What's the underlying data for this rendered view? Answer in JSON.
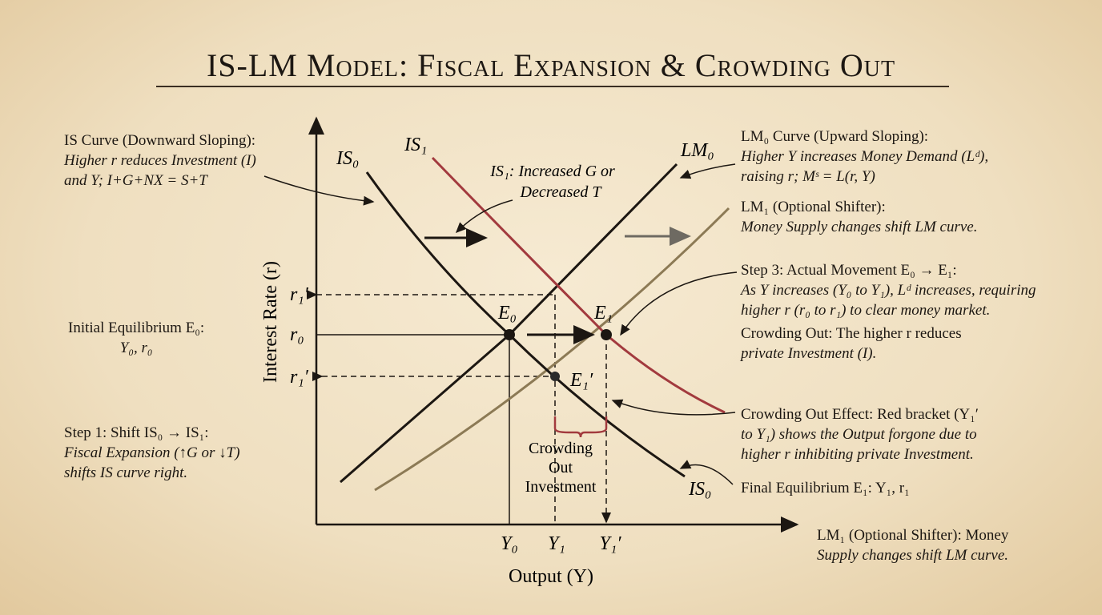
{
  "title": "IS-LM Model: Fiscal Expansion & Crowding Out",
  "axes": {
    "y_label": "Interest Rate (r)",
    "x_label": "Output (Y)"
  },
  "curve_labels": {
    "is0_top": "IS₀",
    "is1": "IS₁",
    "lm0": "LM₀",
    "is0_bottom": "IS₀"
  },
  "axis_marks": {
    "r1_prime_top": "r₁′",
    "r0": "r₀",
    "r1_prime_bottom": "r₁′",
    "y0": "Y₀",
    "y1": "Y₁",
    "y1_prime": "Y₁′"
  },
  "points": {
    "e0": "E₀",
    "e1": "E₁",
    "e1_prime": "E₁′"
  },
  "annotations": {
    "is1_shift": [
      "IS₁: Increased G or",
      "Decreased T"
    ],
    "crowding_out": [
      "Crowding",
      "Out",
      "Investment"
    ]
  },
  "left_notes": {
    "is_curve": [
      "IS Curve (Downward Sloping):",
      "Higher r reduces Investment (I)",
      "and Y; I+G+NX = S+T"
    ],
    "initial_equilibrium": [
      "Initial Equilibrium E₀:",
      "Y₀, r₀"
    ],
    "step1": [
      "Step 1: Shift IS₀ → IS₁:",
      "Fiscal Expansion (↑G or ↓T)",
      "shifts IS curve right."
    ]
  },
  "right_notes": {
    "lm0_curve": [
      "LM₀ Curve (Upward Sloping):",
      "Higher Y increases Money Demand (Lᵈ),",
      "raising r; Mˢ = L(r, Y)"
    ],
    "lm1_shifter": [
      "LM₁ (Optional Shifter):",
      "Money Supply changes shift LM curve."
    ],
    "step3": [
      "Step 3: Actual Movement E₀ → E₁:",
      "As Y increases (Y₀ to Y₁), Lᵈ increases, requiring",
      "higher r (r₀ to r₁) to clear money market."
    ],
    "crowding_out": [
      "Crowding Out: The higher r reduces",
      "private Investment (I)."
    ],
    "crowding_out_effect": [
      "Crowding Out Effect: Red bracket (Y₁′",
      "to Y₁) shows the Output forgone due to",
      "higher r inhibiting private Investment."
    ],
    "final_equilibrium": [
      "Final Equilibrium E₁: Y₁, r₁"
    ],
    "lm1_bottom": [
      "LM₁ (Optional Shifter): Money",
      "Supply changes shift LM curve."
    ]
  }
}
